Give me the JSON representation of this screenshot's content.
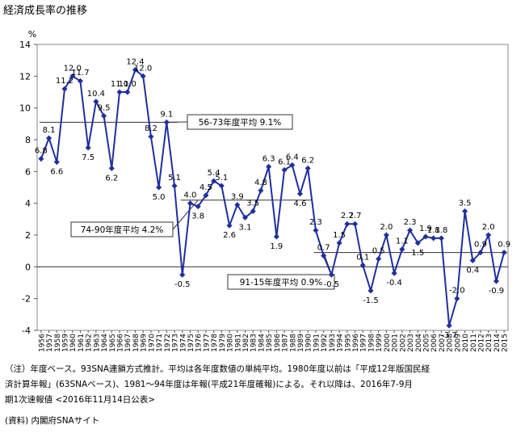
{
  "chart_data": {
    "type": "line",
    "title": "経済成長率の推移",
    "ylabel": "%",
    "ylim": [
      -4,
      14
    ],
    "yticks": [
      -4,
      -2,
      0,
      2,
      4,
      6,
      8,
      10,
      12,
      14
    ],
    "grid": false,
    "x": [
      1956,
      1957,
      1958,
      1959,
      1960,
      1961,
      1962,
      1963,
      1964,
      1965,
      1966,
      1967,
      1968,
      1969,
      1970,
      1971,
      1972,
      1973,
      1974,
      1975,
      1976,
      1977,
      1978,
      1979,
      1980,
      1981,
      1982,
      1983,
      1984,
      1985,
      1986,
      1987,
      1988,
      1989,
      1990,
      1991,
      1992,
      1993,
      1994,
      1995,
      1996,
      1997,
      1998,
      1999,
      2000,
      2001,
      2002,
      2003,
      2004,
      2005,
      2006,
      2007,
      2008,
      2009,
      2010,
      2011,
      2012,
      2013,
      2014,
      2015
    ],
    "series": [
      {
        "color": "#1f2f9e",
        "values": [
          6.8,
          8.1,
          6.6,
          11.2,
          12.0,
          11.7,
          7.5,
          10.4,
          9.5,
          6.2,
          11.0,
          11.0,
          12.4,
          12.0,
          8.2,
          5.0,
          9.1,
          5.1,
          -0.5,
          4.0,
          3.8,
          4.5,
          5.4,
          5.1,
          2.6,
          3.9,
          3.1,
          3.5,
          4.8,
          6.3,
          1.9,
          6.1,
          6.4,
          4.6,
          6.2,
          2.3,
          0.7,
          -0.5,
          1.5,
          2.7,
          2.7,
          0.1,
          -1.5,
          0.5,
          2.0,
          -0.4,
          1.1,
          2.3,
          1.5,
          1.9,
          1.8,
          1.8,
          -3.7,
          -2.0,
          3.5,
          0.4,
          0.9,
          2.0,
          -0.9,
          0.9
        ]
      }
    ],
    "point_labels": [
      "6.8",
      "8.1",
      "6.6",
      "11.2",
      "12.0",
      "11.7",
      "7.5",
      "10.4",
      "9.5",
      "6.2",
      "11.0",
      "11.0",
      "12.4",
      "12.0",
      "8.2",
      "5.0",
      "9.1",
      "5.1",
      "-0.5",
      "4.0",
      "3.8",
      "4.5",
      "5.4",
      "5.1",
      "2.6",
      "3.9",
      "3.1",
      "3.5",
      "4.8",
      "6.3",
      "1.9",
      "6.1",
      "6.4",
      "4.6",
      "6.2",
      "2.3",
      "0.7",
      "-0.5",
      "1.5",
      "2.7",
      "2.7",
      "0.1",
      "-1.5",
      "0.5",
      "2.0",
      "-0.4",
      "1.1",
      "2.3",
      "1.5",
      "1.9",
      "1.8",
      "1.8",
      "-3.7",
      "-2.0",
      "3.5",
      "0.4",
      "0.9",
      "2.0",
      "-0.9",
      "0.9"
    ],
    "averages": [
      {
        "label": "56-73年度平均 9.1%",
        "value": 9.1,
        "from": 1956,
        "to": 1973
      },
      {
        "label": "74-90年度平均 4.2%",
        "value": 4.2,
        "from": 1974,
        "to": 1990
      },
      {
        "label": "91-15年度平均 0.9%",
        "value": 0.9,
        "from": 1991,
        "to": 2015
      }
    ]
  },
  "notes": {
    "line1": "（注）年度ベース。93SNA連鎖方式推計。平均は各年度数値の単純平均。1980年度以前は「平成12年版国民経",
    "line2": "済計算年報」(63SNAベース)、1981～94年度は年報(平成21年度確報)による。それ以降は、2016年7-9月",
    "line3": "期1次速報値 <2016年11月14日公表>",
    "source": "(資料) 内閣府SNAサイト"
  }
}
